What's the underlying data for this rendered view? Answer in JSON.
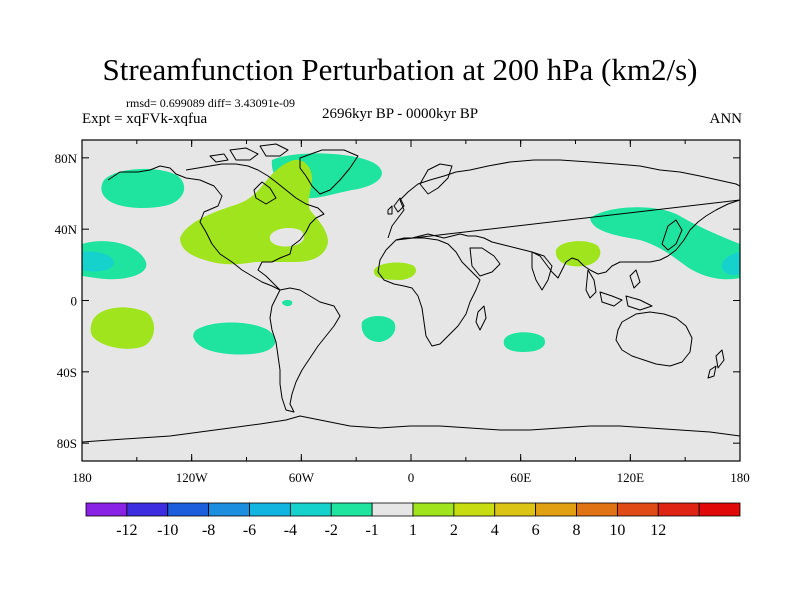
{
  "title": "Streamfunction Perturbation at 200 hPa (km2/s)",
  "stats": "rmsd= 0.699089 diff= 3.43091e-09",
  "experiment": "Expt = xqFVk-xqfua",
  "period": "2696kyr BP - 0000kyr BP",
  "season": "ANN",
  "map": {
    "ocean_color": "#e6e6e6",
    "coast_color": "#000000",
    "lon_ticks": [
      "180",
      "120W",
      "60W",
      "0",
      "60E",
      "120E",
      "180"
    ],
    "lat_ticks": [
      "80N",
      "40N",
      "0",
      "40S",
      "80S"
    ]
  },
  "colorbar": {
    "colors": [
      "#8a22e6",
      "#3c2ee0",
      "#1c5edc",
      "#1c8ee0",
      "#12b4e0",
      "#16d2cc",
      "#1ee4a0",
      "#e6e6e6",
      "#a0e41e",
      "#c8dc12",
      "#dcc414",
      "#e0a012",
      "#e07414",
      "#e04a14",
      "#e02414",
      "#e00808"
    ],
    "labels": [
      "-12",
      "-10",
      "-8",
      "-6",
      "-4",
      "-2",
      "-1",
      "1",
      "2",
      "4",
      "6",
      "8",
      "10",
      "12"
    ]
  },
  "anomalies": [
    {
      "id": "north-atlantic-arc",
      "sign": "positive",
      "level": "1 to 2"
    },
    {
      "id": "north-pacific-east",
      "sign": "negative",
      "level": "-1 to -2"
    },
    {
      "id": "north-pacific-west",
      "sign": "negative",
      "level": "-1 to -2"
    },
    {
      "id": "canada-north",
      "sign": "negative",
      "level": "-1 to -2"
    },
    {
      "id": "south-pacific-east",
      "sign": "negative",
      "level": "-1 to -2"
    },
    {
      "id": "south-atlantic",
      "sign": "negative",
      "level": "-1 to -2"
    },
    {
      "id": "south-indian",
      "sign": "negative",
      "level": "-1 to -2"
    },
    {
      "id": "south-pacific-west",
      "sign": "positive",
      "level": "1 to 2"
    },
    {
      "id": "west-africa",
      "sign": "positive",
      "level": "1 to 2"
    },
    {
      "id": "south-asia",
      "sign": "positive",
      "level": "1 to 2"
    }
  ]
}
